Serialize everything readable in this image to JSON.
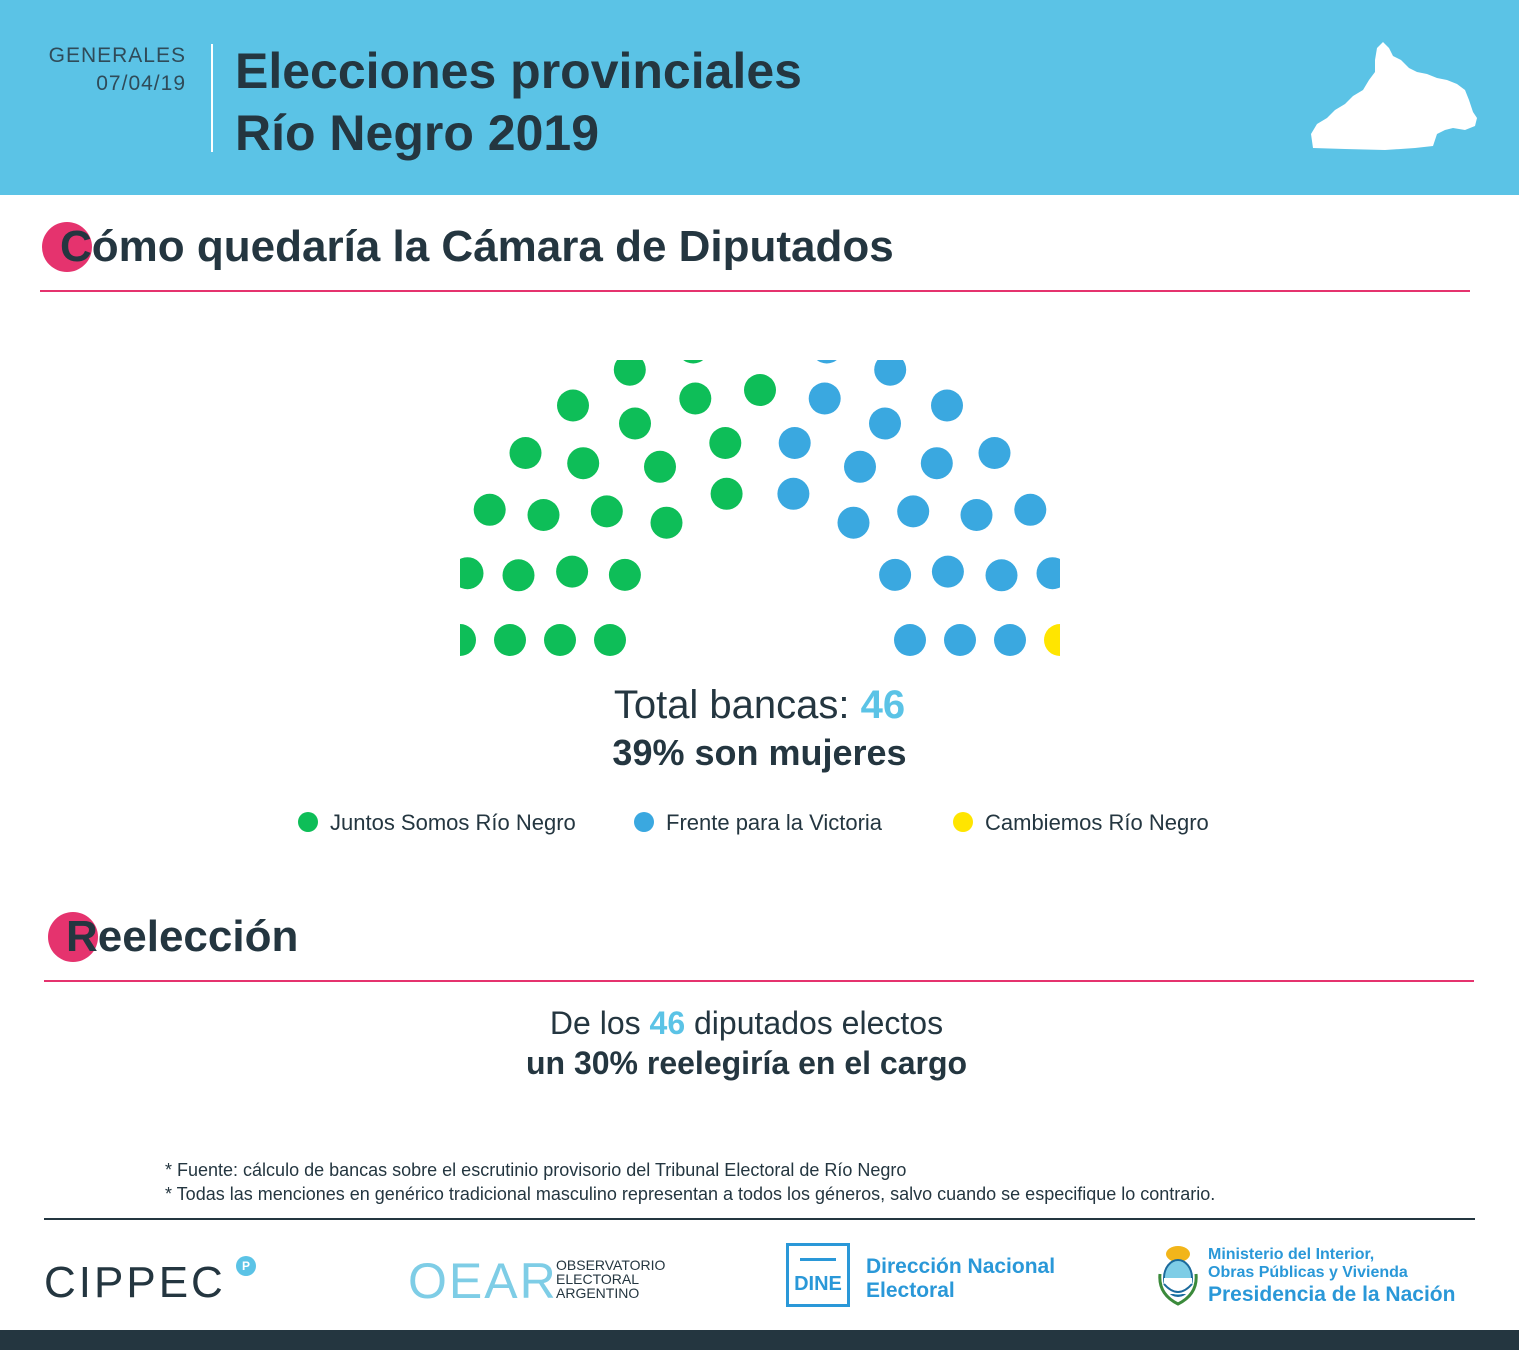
{
  "header": {
    "kicker_line1": "GENERALES",
    "kicker_line2": "07/04/19",
    "title_line1": "Elecciones provinciales",
    "title_line2": "Río Negro 2019"
  },
  "chamber_section": {
    "initial": "C",
    "rest": "ómo quedaría la Cámara de Diputados",
    "total_label": "Total bancas:",
    "total_value": "46",
    "women_line": "39% son mujeres",
    "parties": [
      {
        "name": "Juntos Somos Río Negro",
        "seats": 23,
        "color": "#0ebe58"
      },
      {
        "name": "Frente para la Victoria",
        "seats": 22,
        "color": "#3aa8e0"
      },
      {
        "name": "Cambiemos Río Negro",
        "seats": 1,
        "color": "#ffe500"
      }
    ]
  },
  "reelection_section": {
    "initial": "R",
    "rest": "eelección",
    "line1_pre": "De los",
    "line1_num": "46",
    "line1_post": "diputados electos",
    "line2": "un 30% reelegiría en el cargo"
  },
  "footnotes": [
    "* Fuente: cálculo de bancas sobre el escrutinio provisorio del Tribunal Electoral de Río Negro",
    "* Todas las menciones en genérico tradicional masculino representan a todos los géneros, salvo cuando se especifique lo contrario."
  ],
  "logos": {
    "cippec": "CIPPEC",
    "cippec_badge": "P",
    "oear_mark": "OEAR",
    "oear_l1": "OBSERVATORIO",
    "oear_l2": "ELECTORAL",
    "oear_l3": "ARGENTINO",
    "dine_box": "DINE",
    "dine_l1": "Dirección Nacional",
    "dine_l2": "Electoral",
    "min_l1": "Ministerio del Interior,",
    "min_l2": "Obras Públicas y Vivienda",
    "min_l3": "Presidencia de la Nación"
  },
  "colors": {
    "header_bg": "#5bc3e6",
    "accent_pink": "#e5336e",
    "text_dark": "#243640",
    "number_accent": "#5bc3e6"
  }
}
